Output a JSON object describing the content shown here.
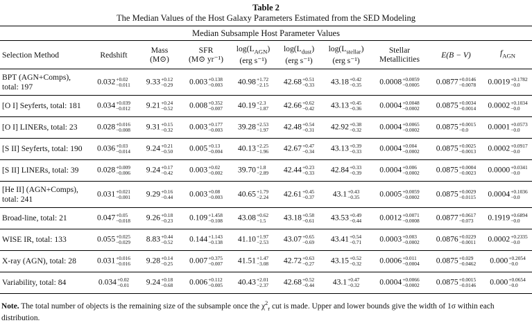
{
  "caption": {
    "table_number": "Table 2",
    "title": "The Median Values of the Host Galaxy Parameters Estimated from the SED Modeling"
  },
  "subheading": "Median Subsample Host Parameter Values",
  "columns": {
    "method": "Selection Method",
    "redshift": "Redshift",
    "mass": "Mass",
    "mass_unit": "(M⊙)",
    "sfr": "SFR",
    "sfr_unit": "(M⊙   yr⁻¹)",
    "lagn": "log(L",
    "lagn_sub": "AGN",
    "ldust": "log(L",
    "ldust_sub": "dust",
    "lstellar": "log(L",
    "lstellar_sub": "stellar",
    "lum_close": ")",
    "lum_unit": "(erg s⁻¹)",
    "metal_1": "Stellar",
    "metal_2": "Metallicities",
    "ebv": "E(B − V)",
    "fagn": "f",
    "fagn_sub": "AGN"
  },
  "rows": [
    {
      "method": "BPT (AGN+Comps), total: 197",
      "tall": true,
      "cells": [
        {
          "v": "0.032",
          "u": "+0.02",
          "l": "−0.011"
        },
        {
          "v": "9.33",
          "u": "+0.12",
          "l": "−0.29"
        },
        {
          "v": "0.003",
          "u": "+0.138",
          "l": "−0.003"
        },
        {
          "v": "40.98",
          "u": "+1.72",
          "l": "−2.15"
        },
        {
          "v": "42.68",
          "u": "+0.51",
          "l": "−0.33"
        },
        {
          "v": "43.18",
          "u": "+0.42",
          "l": "−0.35"
        },
        {
          "v": "0.0008",
          "u": "+0.0059",
          "l": "−0.0005"
        },
        {
          "v": "0.0877",
          "u": "+0.0146",
          "l": "−0.0078"
        },
        {
          "v": "0.0019",
          "u": "+0.1782",
          "l": "−0.0"
        }
      ]
    },
    {
      "method": "[O I] Seyferts, total: 181",
      "tall": false,
      "cells": [
        {
          "v": "0.034",
          "u": "+0.039",
          "l": "−0.012"
        },
        {
          "v": "9.21",
          "u": "+0.24",
          "l": "−0.52"
        },
        {
          "v": "0.008",
          "u": "+0.352",
          "l": "−0.007"
        },
        {
          "v": "40.19",
          "u": "+2.3",
          "l": "−1.87"
        },
        {
          "v": "42.66",
          "u": "+0.62",
          "l": "−0.42"
        },
        {
          "v": "43.13",
          "u": "+0.45",
          "l": "−0.36"
        },
        {
          "v": "0.0004",
          "u": "+0.0048",
          "l": "−0.0002"
        },
        {
          "v": "0.0875",
          "u": "+0.0034",
          "l": "−0.0014"
        },
        {
          "v": "0.0002",
          "u": "+0.1034",
          "l": "−0.0"
        }
      ]
    },
    {
      "method": "[O I] LINERs, total: 23",
      "tall": false,
      "cells": [
        {
          "v": "0.028",
          "u": "+0.016",
          "l": "−0.008"
        },
        {
          "v": "9.31",
          "u": "+0.15",
          "l": "−0.32"
        },
        {
          "v": "0.003",
          "u": "+0.177",
          "l": "−0.003"
        },
        {
          "v": "39.28",
          "u": "+2.53",
          "l": "−1.97"
        },
        {
          "v": "42.48",
          "u": "+0.54",
          "l": "−0.31"
        },
        {
          "v": "42.92",
          "u": "+0.38",
          "l": "−0.32"
        },
        {
          "v": "0.0004",
          "u": "+0.0065",
          "l": "−0.0002"
        },
        {
          "v": "0.0875",
          "u": "+0.0015",
          "l": "−0.0"
        },
        {
          "v": "0.0001",
          "u": "+0.0573",
          "l": "−0.0"
        }
      ]
    },
    {
      "method": "[S II] Seyferts, total: 190",
      "tall": false,
      "cells": [
        {
          "v": "0.036",
          "u": "+0.03",
          "l": "−0.014"
        },
        {
          "v": "9.24",
          "u": "+0.21",
          "l": "−0.50"
        },
        {
          "v": "0.005",
          "u": "+0.13",
          "l": "−0.004"
        },
        {
          "v": "40.13",
          "u": "+2.25",
          "l": "−1.96"
        },
        {
          "v": "42.67",
          "u": "+0.47",
          "l": "−0.34"
        },
        {
          "v": "43.13",
          "u": "+0.39",
          "l": "−0.33"
        },
        {
          "v": "0.0004",
          "u": "+0.004",
          "l": "−0.0002"
        },
        {
          "v": "0.0875",
          "u": "+0.0025",
          "l": "−0.0013"
        },
        {
          "v": "0.0002",
          "u": "+0.0917",
          "l": "−0.0"
        }
      ]
    },
    {
      "method": "[S II] LINERs, total: 39",
      "tall": false,
      "cells": [
        {
          "v": "0.028",
          "u": "+0.009",
          "l": "−0.006"
        },
        {
          "v": "9.24",
          "u": "+0.17",
          "l": "−0.42"
        },
        {
          "v": "0.003",
          "u": "+0.02",
          "l": "−0.002"
        },
        {
          "v": "39.70",
          "u": "+1.8",
          "l": "−2.89"
        },
        {
          "v": "42.44",
          "u": "+0.23",
          "l": "−0.33"
        },
        {
          "v": "42.84",
          "u": "+0.33",
          "l": "−0.39"
        },
        {
          "v": "0.0004",
          "u": "+0.006",
          "l": "−0.0002"
        },
        {
          "v": "0.0875",
          "u": "+0.0004",
          "l": "−0.0023"
        },
        {
          "v": "0.0000",
          "u": "+0.0341",
          "l": "−0.0"
        }
      ]
    },
    {
      "method": "[He II] (AGN+Comps), total: 241",
      "tall": true,
      "cells": [
        {
          "v": "0.031",
          "u": "+0.021",
          "l": "−0.001"
        },
        {
          "v": "9.29",
          "u": "+0.16",
          "l": "−0.44"
        },
        {
          "v": "0.003",
          "u": "+0.08",
          "l": "−0.003"
        },
        {
          "v": "40.65",
          "u": "+1.79",
          "l": "−2.24"
        },
        {
          "v": "42.61",
          "u": "+0.45",
          "l": "−0.37"
        },
        {
          "v": "43.1",
          "u": "+0.43",
          "l": "−0.35"
        },
        {
          "v": "0.0005",
          "u": "+0.0059",
          "l": "−0.0002"
        },
        {
          "v": "0.0875",
          "u": "+0.0029",
          "l": "−0.0115"
        },
        {
          "v": "0.0004",
          "u": "+0.1036",
          "l": "−0.0"
        }
      ]
    },
    {
      "method": "Broad-line, total: 21",
      "tall": false,
      "cells": [
        {
          "v": "0.047",
          "u": "+0.05",
          "l": "−0.018"
        },
        {
          "v": "9.26",
          "u": "+0.18",
          "l": "−0.23"
        },
        {
          "v": "0.109",
          "u": "+1.458",
          "l": "−0.108"
        },
        {
          "v": "43.08",
          "u": "+0.62",
          "l": "−1.5"
        },
        {
          "v": "43.18",
          "u": "+0.58",
          "l": "−0.61"
        },
        {
          "v": "43.53",
          "u": "+0.49",
          "l": "−0.44"
        },
        {
          "v": "0.0012",
          "u": "+0.0071",
          "l": "−0.0008"
        },
        {
          "v": "0.0877",
          "u": "+0.0617",
          "l": "−0.073"
        },
        {
          "v": "0.1919",
          "u": "+0.6894",
          "l": "−0.0"
        }
      ]
    },
    {
      "method": "WISE IR, total: 133",
      "tall": false,
      "cells": [
        {
          "v": "0.055",
          "u": "+0.025",
          "l": "−0.029"
        },
        {
          "v": "8.83",
          "u": "+0.44",
          "l": "−0.52"
        },
        {
          "v": "0.144",
          "u": "+1.143",
          "l": "−0.138"
        },
        {
          "v": "41.10",
          "u": "+1.97",
          "l": "−2.53"
        },
        {
          "v": "43.07",
          "u": "+0.65",
          "l": "−0.69"
        },
        {
          "v": "43.41",
          "u": "+0.54",
          "l": "−0.71"
        },
        {
          "v": "0.0003",
          "u": "+0.003",
          "l": "−0.0002"
        },
        {
          "v": "0.0876",
          "u": "+0.0229",
          "l": "−0.0011"
        },
        {
          "v": "0.0002",
          "u": "+0.2335",
          "l": "−0.0"
        }
      ]
    },
    {
      "method": "X-ray (AGN), total: 28",
      "tall": false,
      "cells": [
        {
          "v": "0.031",
          "u": "+0.016",
          "l": "−0.016"
        },
        {
          "v": "9.28",
          "u": "+0.14",
          "l": "−0.25"
        },
        {
          "v": "0.007",
          "u": "+0.375",
          "l": "−0.007"
        },
        {
          "v": "41.51",
          "u": "+1.47",
          "l": "−3.08"
        },
        {
          "v": "42.72",
          "u": "+0.63",
          "l": "−0.27"
        },
        {
          "v": "43.15",
          "u": "+0.52",
          "l": "−0.32"
        },
        {
          "v": "0.0006",
          "u": "+0.011",
          "l": "−0.0004"
        },
        {
          "v": "0.0875",
          "u": "+0.029",
          "l": "−0.0462"
        },
        {
          "v": "0.000",
          "u": "+0.2054",
          "l": "−0.0"
        }
      ]
    },
    {
      "method": "Variability, total: 84",
      "tall": false,
      "cells": [
        {
          "v": "0.034",
          "u": "+0.02",
          "l": "−0.01"
        },
        {
          "v": "9.24",
          "u": "+0.18",
          "l": "−0.68"
        },
        {
          "v": "0.006",
          "u": "+0.112",
          "l": "−0.005"
        },
        {
          "v": "40.43",
          "u": "+2.01",
          "l": "−2.37"
        },
        {
          "v": "42.68",
          "u": "+0.52",
          "l": "−0.44"
        },
        {
          "v": "43.1",
          "u": "+0.47",
          "l": "−0.32"
        },
        {
          "v": "0.0004",
          "u": "+0.0066",
          "l": "−0.0002"
        },
        {
          "v": "0.0875",
          "u": "+0.0015",
          "l": "−0.0146"
        },
        {
          "v": "0.000",
          "u": "+0.0654",
          "l": "−0.0"
        }
      ]
    }
  ],
  "note": {
    "label": "Note.",
    "text_before": " The total number of objects is the remaining size of the subsample once the χ",
    "chi_sup": "2",
    "chi_sub": "r",
    "text_after": " cut is made. Upper and lower bounds give the width of 1σ within each distribution."
  }
}
